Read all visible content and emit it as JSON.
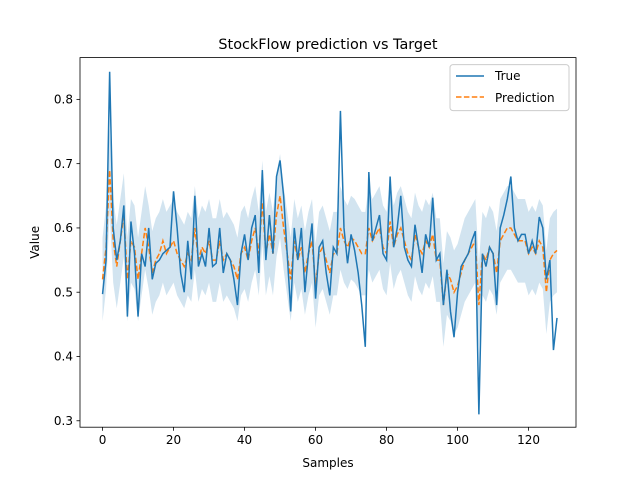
{
  "chart_data": {
    "type": "line",
    "title": "StockFlow prediction vs Target",
    "xlabel": "Samples",
    "ylabel": "Value",
    "xlim": [
      -6.35,
      133.35
    ],
    "ylim": [
      0.29,
      0.865
    ],
    "x_ticks": [
      0,
      20,
      40,
      60,
      80,
      100,
      120
    ],
    "y_ticks": [
      0.3,
      0.4,
      0.5,
      0.6,
      0.7,
      0.8
    ],
    "grid": false,
    "legend_position": "top-right",
    "colors": {
      "true": "#1f77b4",
      "prediction": "#ff7f0e",
      "band": "#1f77b4"
    },
    "series": [
      {
        "name": "True",
        "style": "solid",
        "values": [
          0.497,
          0.55,
          0.843,
          0.6,
          0.55,
          0.58,
          0.635,
          0.462,
          0.61,
          0.56,
          0.462,
          0.56,
          0.54,
          0.6,
          0.52,
          0.545,
          0.55,
          0.56,
          0.565,
          0.57,
          0.657,
          0.6,
          0.53,
          0.5,
          0.58,
          0.52,
          0.65,
          0.54,
          0.56,
          0.54,
          0.6,
          0.54,
          0.545,
          0.6,
          0.53,
          0.56,
          0.55,
          0.52,
          0.48,
          0.56,
          0.59,
          0.55,
          0.6,
          0.62,
          0.53,
          0.69,
          0.55,
          0.62,
          0.56,
          0.68,
          0.705,
          0.65,
          0.56,
          0.47,
          0.6,
          0.55,
          0.6,
          0.5,
          0.56,
          0.607,
          0.49,
          0.57,
          0.58,
          0.53,
          0.495,
          0.57,
          0.56,
          0.782,
          0.6,
          0.545,
          0.59,
          0.565,
          0.53,
          0.48,
          0.415,
          0.687,
          0.58,
          0.6,
          0.62,
          0.56,
          0.55,
          0.68,
          0.57,
          0.6,
          0.65,
          0.57,
          0.55,
          0.54,
          0.605,
          0.57,
          0.53,
          0.59,
          0.57,
          0.647,
          0.55,
          0.56,
          0.48,
          0.535,
          0.47,
          0.43,
          0.5,
          0.54,
          0.55,
          0.56,
          0.58,
          0.595,
          0.31,
          0.56,
          0.54,
          0.57,
          0.56,
          0.48,
          0.6,
          0.62,
          0.645,
          0.68,
          0.6,
          0.58,
          0.59,
          0.59,
          0.56,
          0.58,
          0.56,
          0.617,
          0.6,
          0.52,
          0.55,
          0.41,
          0.46
        ],
        "x_start": 0
      },
      {
        "name": "Prediction",
        "style": "dashed",
        "values": [
          0.52,
          0.57,
          0.69,
          0.58,
          0.54,
          0.58,
          0.62,
          0.52,
          0.58,
          0.57,
          0.52,
          0.56,
          0.6,
          0.57,
          0.53,
          0.55,
          0.56,
          0.58,
          0.56,
          0.57,
          0.58,
          0.56,
          0.55,
          0.54,
          0.56,
          0.55,
          0.6,
          0.55,
          0.57,
          0.56,
          0.58,
          0.55,
          0.55,
          0.58,
          0.55,
          0.56,
          0.55,
          0.54,
          0.52,
          0.56,
          0.57,
          0.55,
          0.58,
          0.6,
          0.56,
          0.64,
          0.56,
          0.59,
          0.56,
          0.62,
          0.65,
          0.6,
          0.56,
          0.52,
          0.58,
          0.55,
          0.57,
          0.53,
          0.56,
          0.58,
          0.51,
          0.56,
          0.57,
          0.55,
          0.53,
          0.56,
          0.56,
          0.6,
          0.58,
          0.57,
          0.585,
          0.58,
          0.57,
          0.56,
          0.56,
          0.6,
          0.58,
          0.59,
          0.6,
          0.57,
          0.56,
          0.61,
          0.57,
          0.59,
          0.6,
          0.58,
          0.56,
          0.55,
          0.59,
          0.57,
          0.56,
          0.58,
          0.57,
          0.59,
          0.55,
          0.55,
          0.48,
          0.53,
          0.52,
          0.5,
          0.51,
          0.53,
          0.55,
          0.56,
          0.57,
          0.58,
          0.48,
          0.56,
          0.55,
          0.57,
          0.56,
          0.53,
          0.58,
          0.59,
          0.6,
          0.6,
          0.59,
          0.58,
          0.58,
          0.58,
          0.56,
          0.57,
          0.56,
          0.58,
          0.57,
          0.5,
          0.55,
          0.56,
          0.565
        ],
        "x_start": 0
      }
    ],
    "band": {
      "center_series": "Prediction",
      "half_width": 0.065
    }
  }
}
